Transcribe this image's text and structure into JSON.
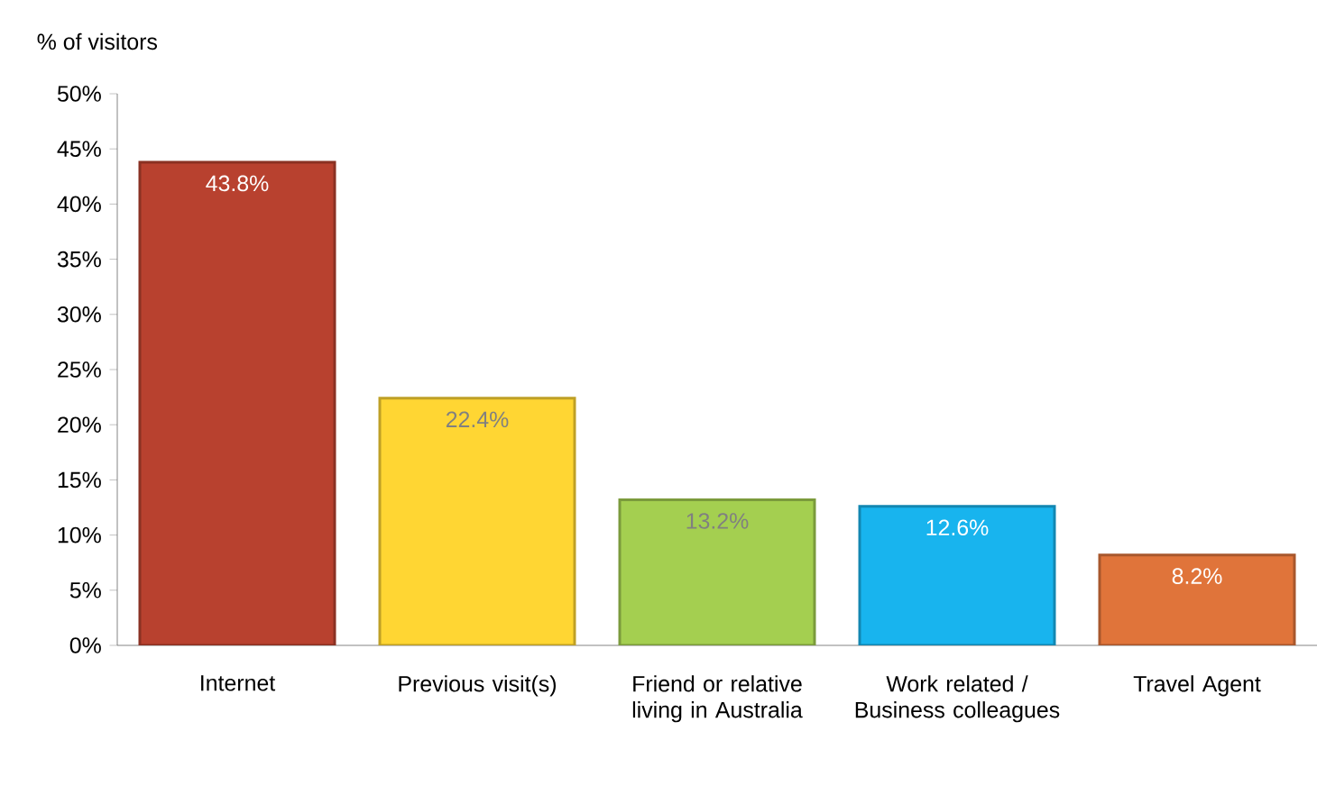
{
  "chart_data": {
    "type": "bar",
    "ylabel": "% of visitors",
    "categories": [
      "Internet",
      "Previous visit(s)",
      "Friend or relative living in Australia",
      "Work related / Business colleagues",
      "Travel Agent"
    ],
    "values": [
      43.8,
      22.4,
      13.2,
      12.6,
      8.2
    ],
    "colors": [
      "#b8412f",
      "#ffd633",
      "#a4cf50",
      "#18b4ee",
      "#e0743a"
    ],
    "value_labels": [
      "43.8%",
      "22.4%",
      "13.2%",
      "12.6%",
      "8.2%"
    ],
    "ylim": [
      0,
      50
    ],
    "yticks": [
      {
        "value": 0,
        "label": "0%"
      },
      {
        "value": 5,
        "label": "5%"
      },
      {
        "value": 10,
        "label": "10%"
      },
      {
        "value": 15,
        "label": "15%"
      },
      {
        "value": 20,
        "label": "20%"
      },
      {
        "value": 25,
        "label": "25%"
      },
      {
        "value": 30,
        "label": "30%"
      },
      {
        "value": 35,
        "label": "35%"
      },
      {
        "value": 40,
        "label": "40%"
      },
      {
        "value": 45,
        "label": "45%"
      },
      {
        "value": 50,
        "label": "50%"
      }
    ],
    "grid": false
  }
}
